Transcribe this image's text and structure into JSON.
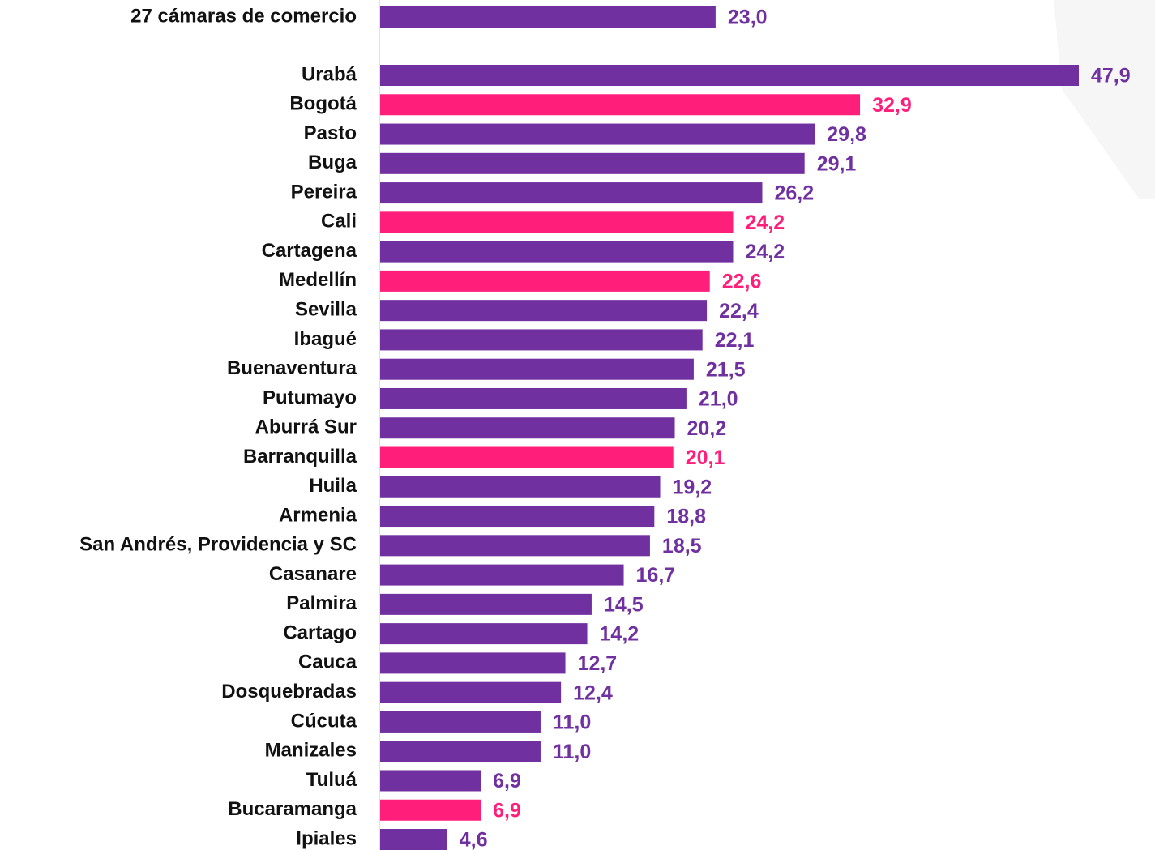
{
  "chart_data": {
    "type": "barh",
    "categories": [
      "27 cámaras de comercio",
      "Urabá",
      "Bogotá",
      "Pasto",
      "Buga",
      "Pereira",
      "Cali",
      "Cartagena",
      "Medellín",
      "Sevilla",
      "Ibagué",
      "Buenaventura",
      "Putumayo",
      "Aburrá Sur",
      "Barranquilla",
      "Huila",
      "Armenia",
      "San Andrés, Providencia y SC",
      "Casanare",
      "Palmira",
      "Cartago",
      "Cauca",
      "Dosquebradas",
      "Cúcuta",
      "Manizales",
      "Tuluá",
      "Bucaramanga",
      "Ipiales"
    ],
    "values": [
      23.0,
      47.9,
      32.9,
      29.8,
      29.1,
      26.2,
      24.2,
      24.2,
      22.6,
      22.4,
      22.1,
      21.5,
      21.0,
      20.2,
      20.1,
      19.2,
      18.8,
      18.5,
      16.7,
      14.5,
      14.2,
      12.7,
      12.4,
      11.0,
      11.0,
      6.9,
      6.9,
      4.6
    ],
    "value_labels": [
      "23,0",
      "47,9",
      "32,9",
      "29,8",
      "29,1",
      "26,2",
      "24,2",
      "24,2",
      "22,6",
      "22,4",
      "22,1",
      "21,5",
      "21,0",
      "20,2",
      "20,1",
      "19,2",
      "18,8",
      "18,5",
      "16,7",
      "14,5",
      "14,2",
      "12,7",
      "12,4",
      "11,0",
      "11,0",
      "6,9",
      "6,9",
      "4,6"
    ],
    "colors": [
      "#7030a0",
      "#7030a0",
      "#ff1f7a",
      "#7030a0",
      "#7030a0",
      "#7030a0",
      "#ff1f7a",
      "#7030a0",
      "#ff1f7a",
      "#7030a0",
      "#7030a0",
      "#7030a0",
      "#7030a0",
      "#7030a0",
      "#ff1f7a",
      "#7030a0",
      "#7030a0",
      "#7030a0",
      "#7030a0",
      "#7030a0",
      "#7030a0",
      "#7030a0",
      "#7030a0",
      "#7030a0",
      "#7030a0",
      "#7030a0",
      "#ff1f7a",
      "#7030a0"
    ]
  }
}
